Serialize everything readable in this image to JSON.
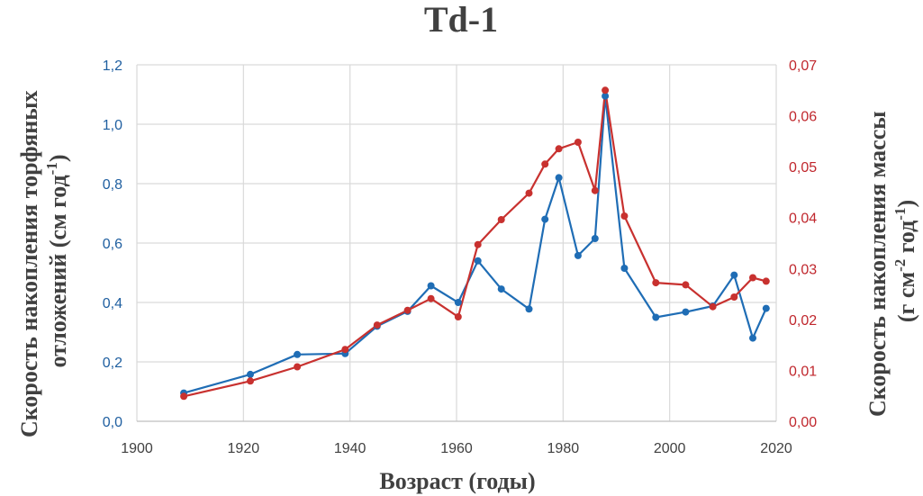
{
  "chart_data": {
    "type": "line",
    "title": "Td-1",
    "xlabel": "Возраст (годы)",
    "ylabel_left": {
      "line1": "Скорость накопления торфяных",
      "line2_main": "отложений (см год",
      "line2_sup": "-1",
      "line2_end": ")"
    },
    "ylabel_right": {
      "line1": "Скорость накопления массы",
      "line2_a": "(г см",
      "line2_sup1": "-2",
      "line2_b": " год",
      "line2_sup2": "-1",
      "line2_c": ")"
    },
    "xlim": [
      1900,
      2020
    ],
    "ylim_left": [
      0,
      1.2
    ],
    "ylim_right": [
      0,
      0.07
    ],
    "x_ticks": [
      "1900",
      "1920",
      "1940",
      "1960",
      "1980",
      "2000",
      "2020"
    ],
    "y_left_ticks": [
      "0,0",
      "0,2",
      "0,4",
      "0,6",
      "0,8",
      "1,0",
      "1,2"
    ],
    "y_right_ticks": [
      "0,00",
      "0,01",
      "0,02",
      "0,03",
      "0,04",
      "0,05",
      "0,06",
      "0,07"
    ],
    "grid": true,
    "series": [
      {
        "axis": "left",
        "color": "#1f6db5",
        "points": [
          [
            1908.8,
            0.095
          ],
          [
            1921.3,
            0.158
          ],
          [
            1930.1,
            0.225
          ],
          [
            1939.1,
            0.228
          ],
          [
            1945.1,
            0.32
          ],
          [
            1950.8,
            0.37
          ],
          [
            1955.2,
            0.456
          ],
          [
            1960.3,
            0.4
          ],
          [
            1964.0,
            0.54
          ],
          [
            1968.4,
            0.445
          ],
          [
            1973.6,
            0.378
          ],
          [
            1976.6,
            0.68
          ],
          [
            1979.2,
            0.82
          ],
          [
            1982.8,
            0.558
          ],
          [
            1986.0,
            0.615
          ],
          [
            1987.9,
            1.095
          ],
          [
            1991.5,
            0.515
          ],
          [
            1997.4,
            0.35
          ],
          [
            2003.0,
            0.368
          ],
          [
            2008.1,
            0.388
          ],
          [
            2012.1,
            0.492
          ],
          [
            2015.6,
            0.28
          ],
          [
            2018.1,
            0.38
          ]
        ]
      },
      {
        "axis": "right",
        "color": "#c8312f",
        "points": [
          [
            1908.8,
            0.0049
          ],
          [
            1921.3,
            0.0079
          ],
          [
            1930.1,
            0.0107
          ],
          [
            1939.1,
            0.0141
          ],
          [
            1945.1,
            0.0189
          ],
          [
            1950.8,
            0.0218
          ],
          [
            1955.2,
            0.0241
          ],
          [
            1960.3,
            0.0205
          ],
          [
            1964.0,
            0.0347
          ],
          [
            1968.4,
            0.0396
          ],
          [
            1973.6,
            0.0448
          ],
          [
            1976.6,
            0.0505
          ],
          [
            1979.2,
            0.0535
          ],
          [
            1982.8,
            0.0548
          ],
          [
            1986.0,
            0.0453
          ],
          [
            1987.9,
            0.065
          ],
          [
            1991.5,
            0.0403
          ],
          [
            1997.4,
            0.0272
          ],
          [
            2003.0,
            0.0268
          ],
          [
            2008.1,
            0.0225
          ],
          [
            2012.1,
            0.0244
          ],
          [
            2015.6,
            0.0282
          ],
          [
            2018.1,
            0.0275
          ]
        ]
      }
    ]
  }
}
